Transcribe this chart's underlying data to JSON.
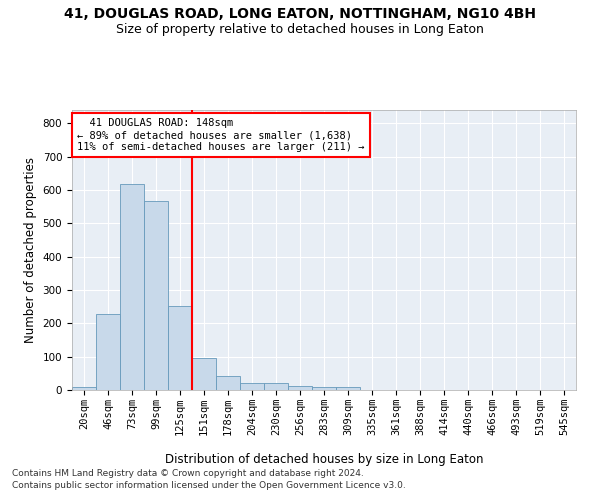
{
  "title": "41, DOUGLAS ROAD, LONG EATON, NOTTINGHAM, NG10 4BH",
  "subtitle": "Size of property relative to detached houses in Long Eaton",
  "xlabel": "Distribution of detached houses by size in Long Eaton",
  "ylabel": "Number of detached properties",
  "bar_color": "#c8d9ea",
  "bar_edge_color": "#6699bb",
  "bin_labels": [
    "20sqm",
    "46sqm",
    "73sqm",
    "99sqm",
    "125sqm",
    "151sqm",
    "178sqm",
    "204sqm",
    "230sqm",
    "256sqm",
    "283sqm",
    "309sqm",
    "335sqm",
    "361sqm",
    "388sqm",
    "414sqm",
    "440sqm",
    "466sqm",
    "493sqm",
    "519sqm",
    "545sqm"
  ],
  "bar_values": [
    10,
    227,
    618,
    568,
    253,
    97,
    43,
    20,
    20,
    13,
    8,
    8,
    0,
    0,
    0,
    0,
    0,
    0,
    0,
    0,
    0
  ],
  "ylim": [
    0,
    840
  ],
  "yticks": [
    0,
    100,
    200,
    300,
    400,
    500,
    600,
    700,
    800
  ],
  "property_line_x": 4.5,
  "annotation_box_text": "  41 DOUGLAS ROAD: 148sqm\n← 89% of detached houses are smaller (1,638)\n11% of semi-detached houses are larger (211) →",
  "footnote1": "Contains HM Land Registry data © Crown copyright and database right 2024.",
  "footnote2": "Contains public sector information licensed under the Open Government Licence v3.0.",
  "background_color": "#ffffff",
  "plot_bg_color": "#e8eef5",
  "grid_color": "#ffffff",
  "title_fontsize": 10,
  "subtitle_fontsize": 9,
  "xlabel_fontsize": 8.5,
  "ylabel_fontsize": 8.5,
  "tick_fontsize": 7.5,
  "annot_fontsize": 7.5,
  "footnote_fontsize": 6.5
}
